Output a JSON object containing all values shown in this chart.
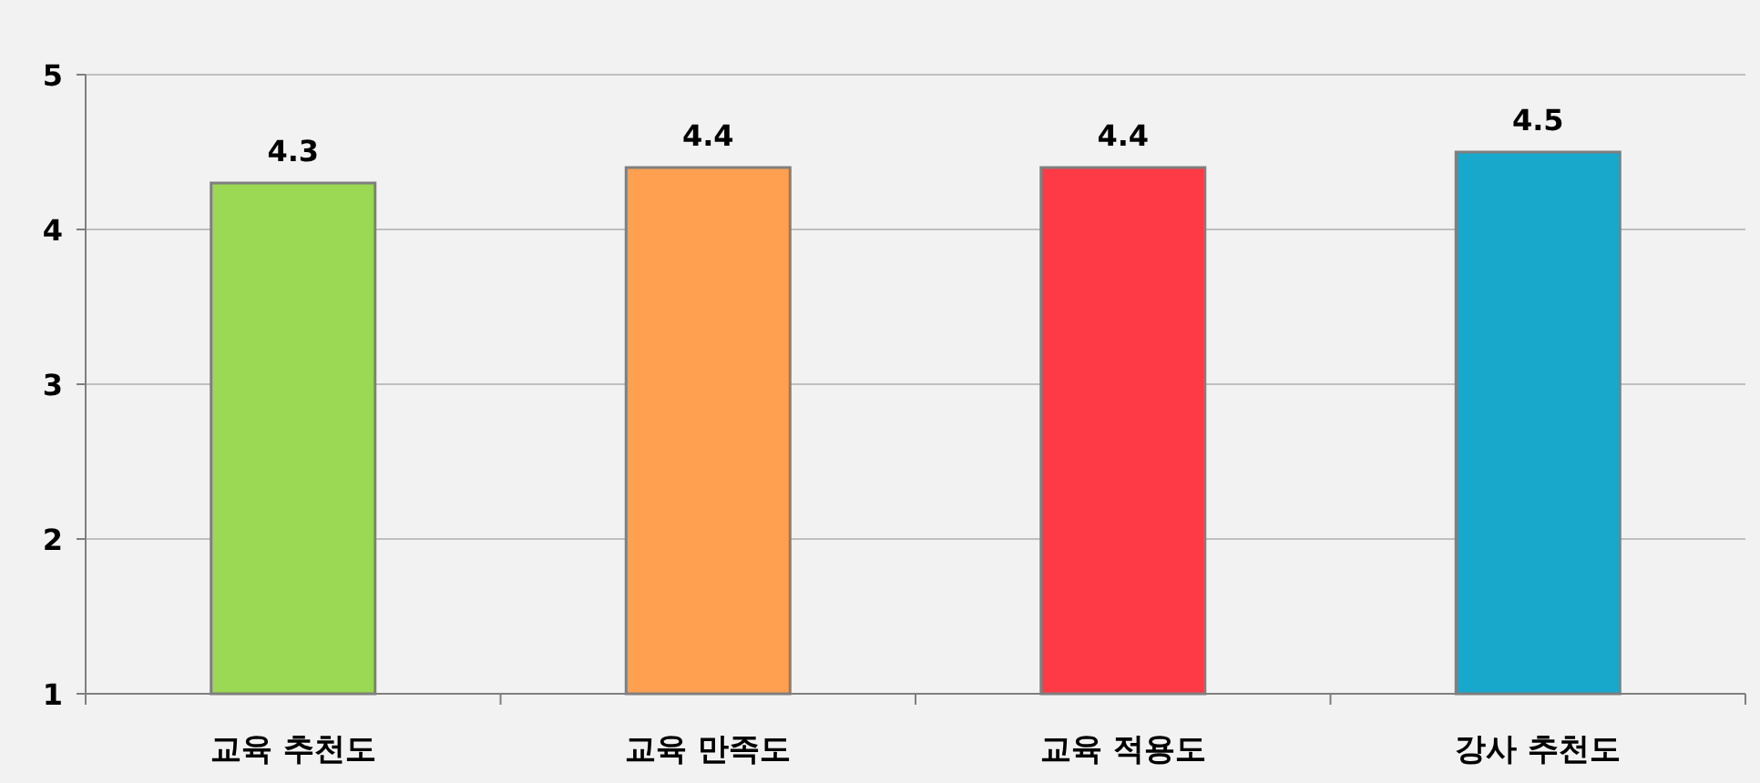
{
  "chart_data": {
    "type": "bar",
    "categories": [
      "교육 추천도",
      "교육 만족도",
      "교육 적용도",
      "강사 추천도"
    ],
    "values": [
      4.3,
      4.4,
      4.4,
      4.5
    ],
    "colors": [
      "#9bd853",
      "#ffa050",
      "#fd3a45",
      "#17a8cc"
    ],
    "ylim": [
      1,
      5
    ],
    "yticks": [
      1,
      2,
      3,
      4,
      5
    ],
    "grid": "y",
    "data_labels": true
  }
}
